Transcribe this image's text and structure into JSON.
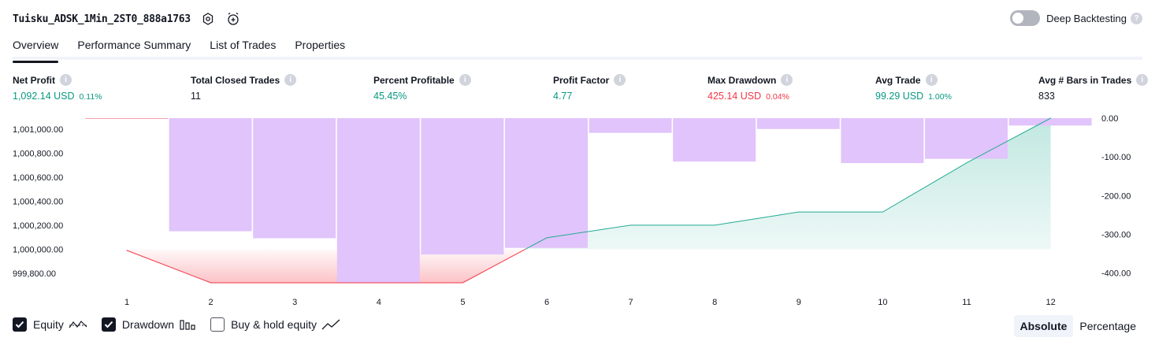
{
  "header": {
    "strategy_name": "Tuisku_ADSK_1Min_2ST0_888a1763",
    "settings_icon": "gear-icon",
    "alert_icon": "alarm-clock-plus-icon",
    "deep_backtesting_label": "Deep Backtesting",
    "deep_backtesting_on": false
  },
  "tabs": [
    {
      "label": "Overview",
      "active": true
    },
    {
      "label": "Performance Summary",
      "active": false
    },
    {
      "label": "List of Trades",
      "active": false
    },
    {
      "label": "Properties",
      "active": false
    }
  ],
  "metrics": [
    {
      "label": "Net Profit",
      "value": "1,092.14 USD",
      "pct": "0.11%",
      "color": "green"
    },
    {
      "label": "Total Closed Trades",
      "value": "11",
      "pct": "",
      "color": "dark"
    },
    {
      "label": "Percent Profitable",
      "value": "45.45%",
      "pct": "",
      "color": "green"
    },
    {
      "label": "Profit Factor",
      "value": "4.77",
      "pct": "",
      "color": "green"
    },
    {
      "label": "Max Drawdown",
      "value": "425.14 USD",
      "pct": "0.04%",
      "color": "red"
    },
    {
      "label": "Avg Trade",
      "value": "99.29 USD",
      "pct": "1.00%",
      "color": "green"
    },
    {
      "label": "Avg # Bars in Trades",
      "value": "833",
      "pct": "",
      "color": "dark"
    }
  ],
  "colors": {
    "equity_line": "#22ab94",
    "drawdown_bar": "#e1c4fb",
    "negative_line": "#f23645",
    "positive_text": "#089981",
    "negative_text": "#f23645"
  },
  "chart_data": {
    "type": "line",
    "x": [
      1,
      2,
      3,
      4,
      5,
      6,
      7,
      8,
      9,
      10,
      11,
      12
    ],
    "series": [
      {
        "name": "Equity",
        "axis": "left",
        "values": [
          999990,
          999720,
          999720,
          999720,
          999720,
          1000095,
          1000200,
          1000200,
          1000310,
          1000310,
          1000720,
          1001092
        ]
      },
      {
        "name": "Drawdown",
        "axis": "right",
        "type": "bar",
        "values": [
          -1,
          -292,
          -310,
          -425,
          -352,
          -335,
          -38,
          -112,
          -28,
          -116,
          -105,
          -19
        ]
      }
    ],
    "y_left_ticks": [
      "1,001,000.00",
      "1,000,800.00",
      "1,000,600.00",
      "1,000,400.00",
      "1,000,200.00",
      "1,000,000.00",
      "999,800.00"
    ],
    "y_left_range": [
      999720,
      1001092
    ],
    "y_right_ticks": [
      "0.00",
      "-100.00",
      "-200.00",
      "-300.00",
      "-400.00"
    ],
    "y_right_range": [
      -425,
      0
    ],
    "x_ticks": [
      "1",
      "2",
      "3",
      "4",
      "5",
      "6",
      "7",
      "8",
      "9",
      "10",
      "11",
      "12"
    ]
  },
  "legend": [
    {
      "label": "Equity",
      "checked": true,
      "icon": "equity-line-icon"
    },
    {
      "label": "Drawdown",
      "checked": true,
      "icon": "drawdown-bars-icon"
    },
    {
      "label": "Buy & hold equity",
      "checked": false,
      "icon": "buy-hold-line-icon"
    }
  ],
  "display_mode": {
    "absolute_label": "Absolute",
    "percentage_label": "Percentage",
    "selected": "Absolute"
  }
}
